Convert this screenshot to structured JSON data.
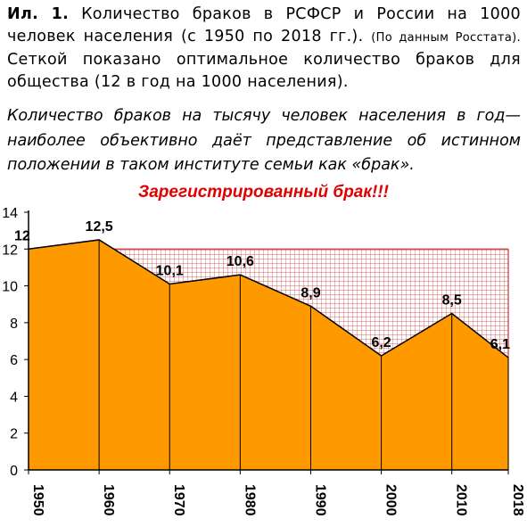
{
  "caption": {
    "label": "Ил. 1.",
    "text": "Количество браков в РСФСР и России на 1000 человек населения (с 1950 по 2018 гг.).",
    "source": "(По данным Росстата).",
    "note": "Сеткой показано оптимальное количество браков для общества (12 в год на 1000 населения)."
  },
  "quote": "Количество браков на тысячу человек населения в год—наиболее объективно даёт представление об истинном положении в таком институте семьи как «брак».",
  "banner": "Зарегистрированный брак!!!",
  "colors": {
    "area": "#ff9900",
    "grid": "#cc3333",
    "banner": "#e00000"
  },
  "chart_data": {
    "type": "area",
    "x": [
      1950,
      1960,
      1970,
      1980,
      1990,
      2000,
      2010,
      2018
    ],
    "values": [
      12,
      12.5,
      10.1,
      10.6,
      8.9,
      6.2,
      8.5,
      6.1
    ],
    "data_labels": [
      "12",
      "12,5",
      "10,1",
      "10,6",
      "8,9",
      "6,2",
      "8,5",
      "6,1"
    ],
    "x_tick_labels": [
      "1950",
      "1960",
      "1970",
      "1980",
      "1990",
      "2000",
      "2010",
      "2018"
    ],
    "y_ticks": [
      0,
      2,
      4,
      6,
      8,
      10,
      12,
      14
    ],
    "ylim": [
      0,
      14
    ],
    "optimal_level": 12,
    "grid": true,
    "legend": "none"
  }
}
